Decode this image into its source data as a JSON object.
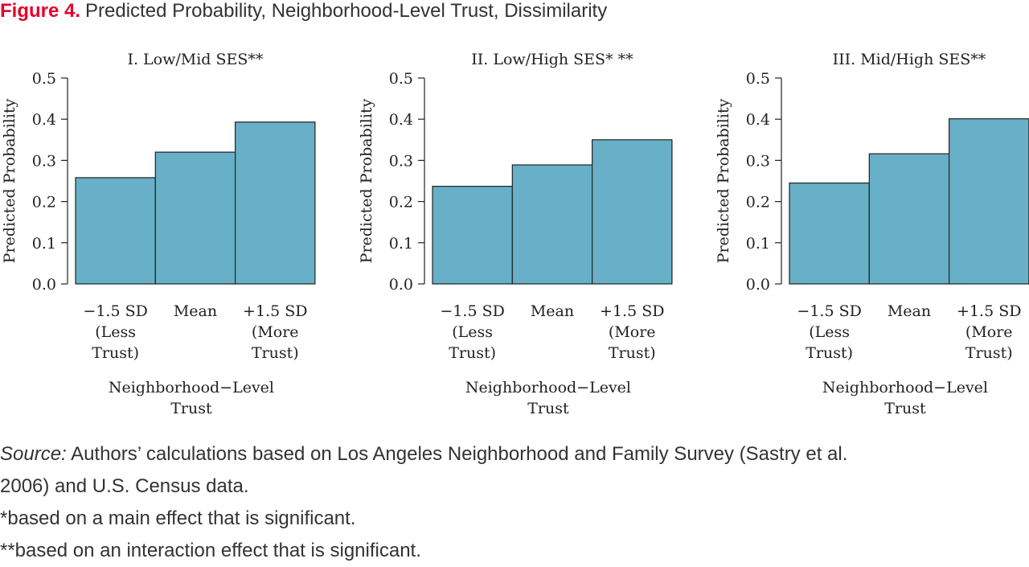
{
  "figure": {
    "label": "Figure 4.",
    "title": "Predicted Probability, Neighborhood-Level Trust, Dissimilarity"
  },
  "notes": {
    "source_label": "Source:",
    "source_line1": "Authors’ calculations based on Los Angeles Neighborhood and Family Survey (Sastry et al.",
    "source_line2": "2006) and U.S. Census data.",
    "note1": "*based on a main effect that is significant.",
    "note2": "**based on an interaction effect that is significant."
  },
  "colors": {
    "bar": "#67b0c7",
    "stroke": "#222222"
  },
  "chart_data": [
    {
      "type": "bar",
      "title": "I. Low/Mid SES**",
      "categories": [
        [
          "−1.5 SD",
          "(Less",
          "Trust)"
        ],
        [
          "Mean"
        ],
        [
          "+1.5 SD",
          "(More",
          "Trust)"
        ]
      ],
      "values": [
        0.258,
        0.32,
        0.393
      ],
      "ylabel": "Predicted Probability",
      "xlabel": [
        "Neighborhood−Level",
        "Trust"
      ],
      "ylim": [
        0,
        0.5
      ],
      "yticks": [
        "0.0",
        "0.1",
        "0.2",
        "0.3",
        "0.4",
        "0.5"
      ]
    },
    {
      "type": "bar",
      "title": "II. Low/High SES* **",
      "categories": [
        [
          "−1.5 SD",
          "(Less",
          "Trust)"
        ],
        [
          "Mean"
        ],
        [
          "+1.5 SD",
          "(More",
          "Trust)"
        ]
      ],
      "values": [
        0.237,
        0.289,
        0.35
      ],
      "ylabel": "Predicted Probability",
      "xlabel": [
        "Neighborhood−Level",
        "Trust"
      ],
      "ylim": [
        0,
        0.5
      ],
      "yticks": [
        "0.0",
        "0.1",
        "0.2",
        "0.3",
        "0.4",
        "0.5"
      ]
    },
    {
      "type": "bar",
      "title": "III. Mid/High SES**",
      "categories": [
        [
          "−1.5 SD",
          "(Less",
          "Trust)"
        ],
        [
          "Mean"
        ],
        [
          "+1.5 SD",
          "(More",
          "Trust)"
        ]
      ],
      "values": [
        0.245,
        0.316,
        0.401
      ],
      "ylabel": "Predicted Probability",
      "xlabel": [
        "Neighborhood−Level",
        "Trust"
      ],
      "ylim": [
        0,
        0.5
      ],
      "yticks": [
        "0.0",
        "0.1",
        "0.2",
        "0.3",
        "0.4",
        "0.5"
      ]
    }
  ]
}
